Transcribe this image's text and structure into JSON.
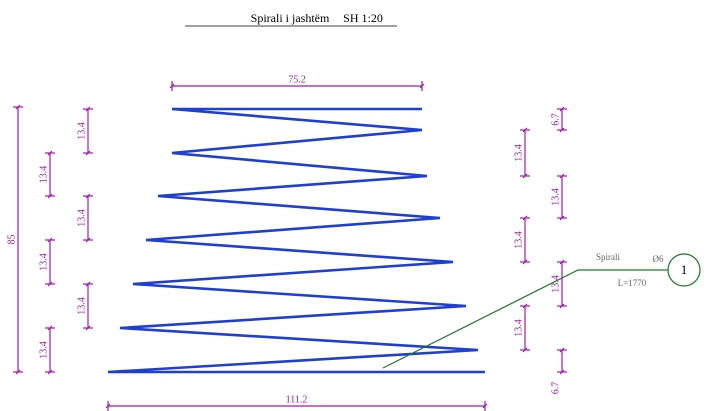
{
  "title": {
    "name": "Spirali i jashtëm",
    "scale": "SH 1:20"
  },
  "dimensions": {
    "top_width": "75.2",
    "bottom_width": "111.2",
    "height": "85",
    "left_outer": [
      "13.4",
      "13.4",
      "13.4"
    ],
    "left_inner": [
      "13.4",
      "13.4",
      "13.4"
    ],
    "right_inner": [
      "13.4",
      "13.4",
      "13.4"
    ],
    "right_outer": [
      "6.7",
      "13.4",
      "13.4",
      "6.7"
    ]
  },
  "callout": {
    "label": "Spirali",
    "diameter": "Ø6",
    "length": "L=1770",
    "number": "1"
  }
}
